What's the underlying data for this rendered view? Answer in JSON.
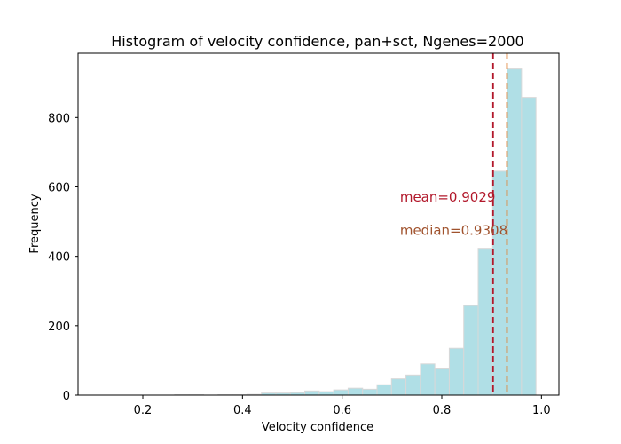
{
  "chart_data": {
    "type": "bar",
    "title": "Histogram of velocity confidence, pan+sct, Ngenes=2000",
    "xlabel": "Velocity confidence",
    "ylabel": "Frequency",
    "xlim": [
      0.07,
      1.035
    ],
    "ylim": [
      0,
      985
    ],
    "xticks": [
      0.2,
      0.4,
      0.6,
      0.8,
      1.0
    ],
    "xtick_labels": [
      "0.2",
      "0.4",
      "0.6",
      "0.8",
      "1.0"
    ],
    "yticks": [
      0,
      200,
      400,
      600,
      800
    ],
    "ytick_labels": [
      "0",
      "200",
      "400",
      "600",
      "800"
    ],
    "bar_color": "#b0dfe6",
    "bar_edge_color": "#d8d8d8",
    "bins": [
      {
        "x0": 0.119,
        "x1": 0.148,
        "value": 0
      },
      {
        "x0": 0.148,
        "x1": 0.177,
        "value": 0
      },
      {
        "x0": 0.177,
        "x1": 0.206,
        "value": 0
      },
      {
        "x0": 0.206,
        "x1": 0.235,
        "value": 0
      },
      {
        "x0": 0.235,
        "x1": 0.264,
        "value": 0
      },
      {
        "x0": 0.264,
        "x1": 0.293,
        "value": 1
      },
      {
        "x0": 0.293,
        "x1": 0.322,
        "value": 1
      },
      {
        "x0": 0.322,
        "x1": 0.351,
        "value": 0
      },
      {
        "x0": 0.351,
        "x1": 0.38,
        "value": 1
      },
      {
        "x0": 0.38,
        "x1": 0.409,
        "value": 1
      },
      {
        "x0": 0.409,
        "x1": 0.438,
        "value": 2
      },
      {
        "x0": 0.438,
        "x1": 0.467,
        "value": 6
      },
      {
        "x0": 0.467,
        "x1": 0.496,
        "value": 6
      },
      {
        "x0": 0.496,
        "x1": 0.525,
        "value": 7
      },
      {
        "x0": 0.525,
        "x1": 0.554,
        "value": 12
      },
      {
        "x0": 0.554,
        "x1": 0.583,
        "value": 10
      },
      {
        "x0": 0.583,
        "x1": 0.612,
        "value": 15
      },
      {
        "x0": 0.612,
        "x1": 0.641,
        "value": 20
      },
      {
        "x0": 0.641,
        "x1": 0.67,
        "value": 17
      },
      {
        "x0": 0.67,
        "x1": 0.699,
        "value": 30
      },
      {
        "x0": 0.699,
        "x1": 0.728,
        "value": 47
      },
      {
        "x0": 0.728,
        "x1": 0.757,
        "value": 58
      },
      {
        "x0": 0.757,
        "x1": 0.786,
        "value": 90
      },
      {
        "x0": 0.786,
        "x1": 0.815,
        "value": 78
      },
      {
        "x0": 0.815,
        "x1": 0.844,
        "value": 135
      },
      {
        "x0": 0.844,
        "x1": 0.873,
        "value": 258
      },
      {
        "x0": 0.873,
        "x1": 0.902,
        "value": 423
      },
      {
        "x0": 0.902,
        "x1": 0.931,
        "value": 645
      },
      {
        "x0": 0.931,
        "x1": 0.96,
        "value": 940
      },
      {
        "x0": 0.96,
        "x1": 0.989,
        "value": 858
      }
    ],
    "reference_lines": [
      {
        "name": "mean",
        "value": 0.9029,
        "color": "#b2182b",
        "label": "mean=0.9029"
      },
      {
        "name": "median",
        "value": 0.9308,
        "color": "#e0853a",
        "label": "median=0.9308"
      }
    ],
    "annotations": [
      {
        "text": "mean=0.9029",
        "x": 0.716,
        "y": 570,
        "color": "#b2182b"
      },
      {
        "text": "median=0.9308",
        "x": 0.716,
        "y": 475,
        "color": "#a0522d"
      }
    ],
    "grid": false,
    "legend": "none"
  }
}
